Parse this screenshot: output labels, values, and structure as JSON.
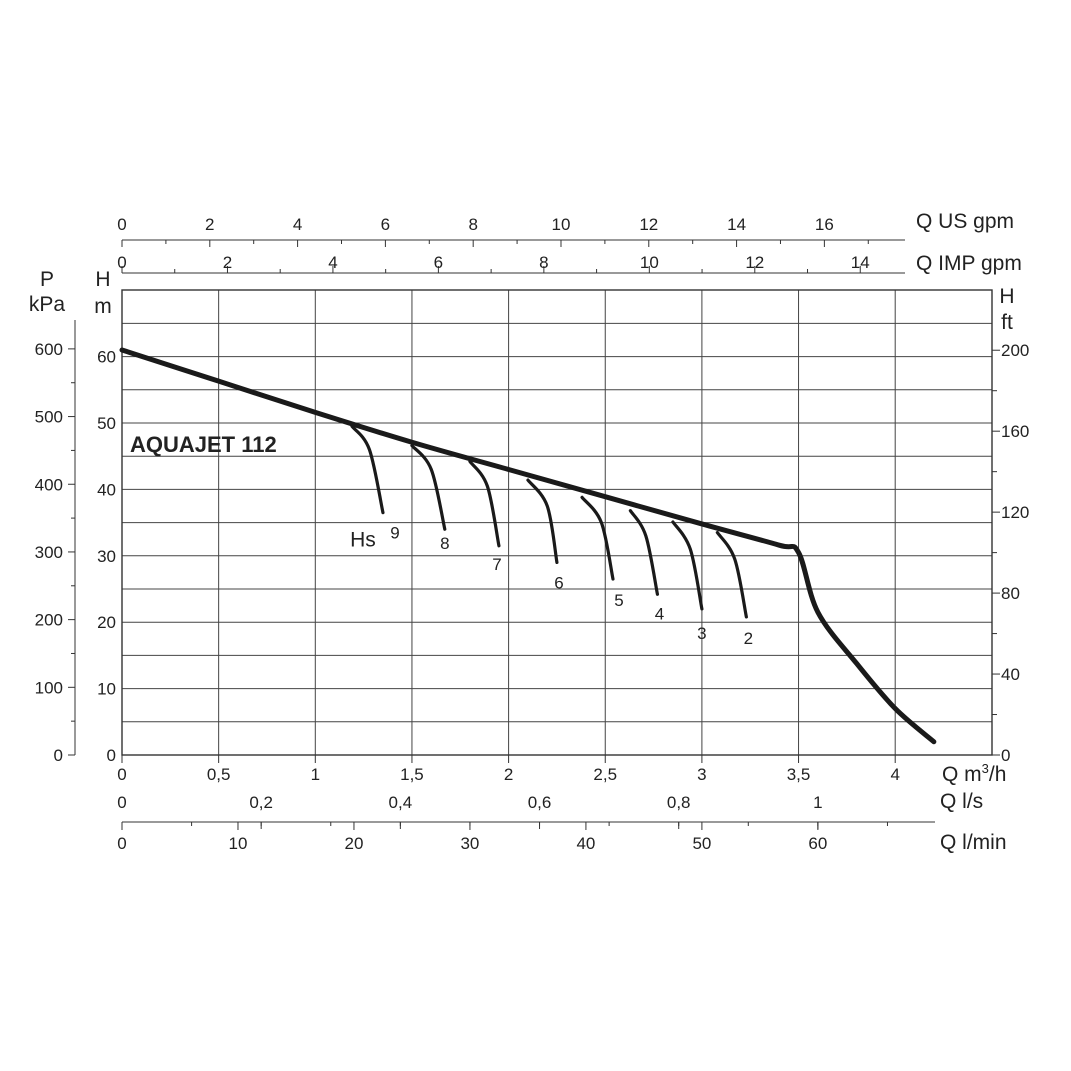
{
  "chart_data": {
    "type": "line",
    "title": "AQUAJET 112",
    "xlabel": "Q m³/h",
    "ylabel": "H m",
    "xlim": [
      0,
      4.5
    ],
    "ylim": [
      0,
      70
    ],
    "grid": true,
    "x_ticks": [
      "0",
      "0,5",
      "1",
      "1,5",
      "2",
      "2,5",
      "3",
      "3,5",
      "4"
    ],
    "y_ticks": [
      "0",
      "10",
      "20",
      "30",
      "40",
      "50",
      "60"
    ],
    "left_outer_axis": {
      "label_line1": "P",
      "label_line2": "kPa",
      "ticks": [
        {
          "label": "0",
          "value": 0
        },
        {
          "label": "100",
          "value": 100
        },
        {
          "label": "200",
          "value": 200
        },
        {
          "label": "300",
          "value": 300
        },
        {
          "label": "400",
          "value": 400
        },
        {
          "label": "500",
          "value": 500
        },
        {
          "label": "600",
          "value": 600
        }
      ]
    },
    "left_axis_title": {
      "line1": "H",
      "line2": "m"
    },
    "right_axis": {
      "label_line1": "H",
      "label_line2": "ft",
      "ticks": [
        {
          "label": "0",
          "value": 0
        },
        {
          "label": "40",
          "value": 40
        },
        {
          "label": "80",
          "value": 80
        },
        {
          "label": "120",
          "value": 120
        },
        {
          "label": "160",
          "value": 160
        },
        {
          "label": "200",
          "value": 200
        }
      ]
    },
    "top_axes": [
      {
        "label": "Q US gpm",
        "ticks": [
          {
            "label": "0",
            "value": 0
          },
          {
            "label": "2",
            "value": 2
          },
          {
            "label": "4",
            "value": 4
          },
          {
            "label": "6",
            "value": 6
          },
          {
            "label": "8",
            "value": 8
          },
          {
            "label": "10",
            "value": 10
          },
          {
            "label": "12",
            "value": 12
          },
          {
            "label": "14",
            "value": 14
          },
          {
            "label": "16",
            "value": 16
          }
        ]
      },
      {
        "label": "Q IMP gpm",
        "ticks": [
          {
            "label": "0",
            "value": 0
          },
          {
            "label": "2",
            "value": 2
          },
          {
            "label": "4",
            "value": 4
          },
          {
            "label": "6",
            "value": 6
          },
          {
            "label": "8",
            "value": 8
          },
          {
            "label": "10",
            "value": 10
          },
          {
            "label": "12",
            "value": 12
          },
          {
            "label": "14",
            "value": 14
          }
        ]
      }
    ],
    "bottom_axes": [
      {
        "label": "Q l/s",
        "ticks": [
          {
            "label": "0",
            "value": 0
          },
          {
            "label": "0,2",
            "value": 0.2
          },
          {
            "label": "0,4",
            "value": 0.4
          },
          {
            "label": "0,6",
            "value": 0.6
          },
          {
            "label": "0,8",
            "value": 0.8
          },
          {
            "label": "1",
            "value": 1
          }
        ]
      },
      {
        "label": "Q l/min",
        "ticks": [
          {
            "label": "0",
            "value": 0
          },
          {
            "label": "10",
            "value": 10
          },
          {
            "label": "20",
            "value": 20
          },
          {
            "label": "30",
            "value": 30
          },
          {
            "label": "40",
            "value": 40
          },
          {
            "label": "50",
            "value": 50
          },
          {
            "label": "60",
            "value": 60
          }
        ]
      }
    ],
    "suction_label": "Hs",
    "series": [
      {
        "values": [
          [
            0,
            61
          ],
          [
            0.5,
            56.3
          ],
          [
            1,
            51.6
          ],
          [
            1.5,
            47.1
          ],
          [
            2,
            43
          ],
          [
            2.5,
            38.9
          ],
          [
            3,
            34.8
          ],
          [
            3.4,
            31.6
          ],
          [
            3.5,
            30.5
          ],
          [
            3.6,
            21.5
          ],
          [
            3.8,
            13.8
          ],
          [
            4,
            7
          ],
          [
            4.2,
            2
          ]
        ]
      },
      {
        "name": "9",
        "values": [
          [
            1.19,
            49.5
          ],
          [
            1.28,
            46
          ],
          [
            1.35,
            36.5
          ]
        ]
      },
      {
        "name": "8",
        "values": [
          [
            1.5,
            46.6
          ],
          [
            1.6,
            43
          ],
          [
            1.67,
            34
          ]
        ]
      },
      {
        "name": "7",
        "values": [
          [
            1.8,
            44.2
          ],
          [
            1.89,
            40.5
          ],
          [
            1.95,
            31.5
          ]
        ]
      },
      {
        "name": "6",
        "values": [
          [
            2.1,
            41.4
          ],
          [
            2.2,
            37.5
          ],
          [
            2.25,
            29
          ]
        ]
      },
      {
        "name": "5",
        "values": [
          [
            2.38,
            38.8
          ],
          [
            2.48,
            35
          ],
          [
            2.54,
            26.5
          ]
        ]
      },
      {
        "name": "4",
        "values": [
          [
            2.63,
            36.8
          ],
          [
            2.71,
            33
          ],
          [
            2.77,
            24.2
          ]
        ]
      },
      {
        "name": "3",
        "values": [
          [
            2.85,
            35.1
          ],
          [
            2.94,
            31
          ],
          [
            3,
            22
          ]
        ]
      },
      {
        "name": "2",
        "values": [
          [
            3.08,
            33.5
          ],
          [
            3.17,
            29.5
          ],
          [
            3.23,
            20.8
          ]
        ]
      }
    ]
  }
}
